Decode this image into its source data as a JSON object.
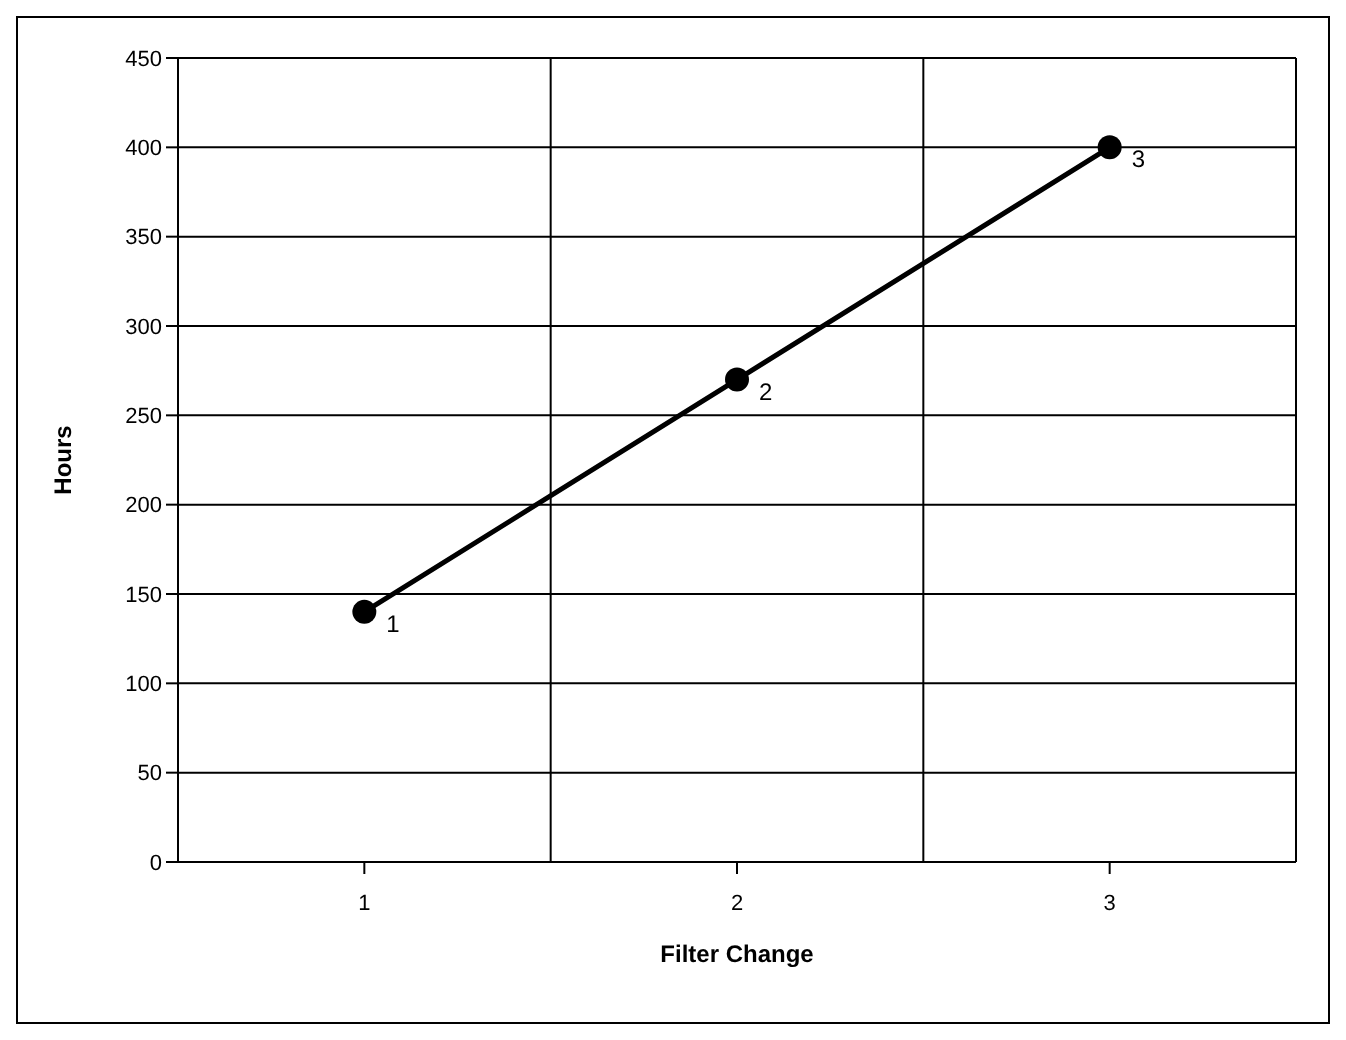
{
  "chart_data": {
    "type": "line",
    "xlabel": "Filter Change",
    "ylabel": "Hours",
    "categories": [
      "1",
      "2",
      "3"
    ],
    "series": [
      {
        "color": "#000000",
        "values": [
          140,
          270,
          400
        ]
      }
    ],
    "annotations": [
      {
        "text": "1",
        "x": "1",
        "y": 140
      },
      {
        "text": "2",
        "x": "2",
        "y": 270
      },
      {
        "text": "3",
        "x": "3",
        "y": 400
      }
    ],
    "ylim": [
      0,
      450
    ],
    "yticks": [
      0,
      50,
      100,
      150,
      200,
      250,
      300,
      350,
      400,
      450
    ],
    "grid": true,
    "marker": "circle",
    "line_style": "solid"
  }
}
